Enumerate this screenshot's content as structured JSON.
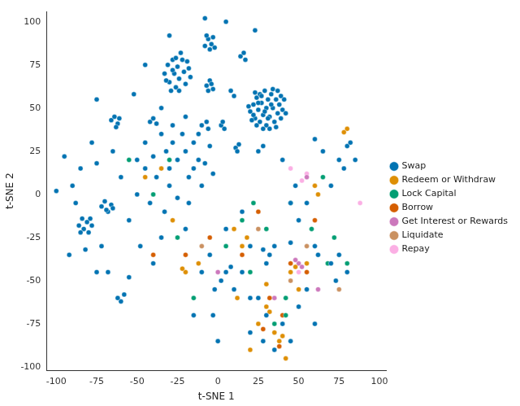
{
  "chart_data": {
    "type": "scatter",
    "x_label": "t-SNE 1",
    "y_label": "t-SNE 2",
    "xlim": [
      -106,
      104
    ],
    "ylim": [
      -102,
      106
    ],
    "xticks": [
      -100,
      -75,
      -50,
      -25,
      0,
      25,
      50,
      75,
      100
    ],
    "yticks": [
      -100,
      -75,
      -50,
      -25,
      0,
      25,
      50,
      75,
      100
    ],
    "grid": false,
    "legend": "right",
    "marker": "circle",
    "series": [
      {
        "name": "Swap",
        "color": "#0173b2",
        "values": [
          [
            20,
            48
          ],
          [
            22,
            52
          ],
          [
            23,
            44
          ],
          [
            24,
            56
          ],
          [
            25,
            49
          ],
          [
            26,
            42
          ],
          [
            26,
            58
          ],
          [
            27,
            53
          ],
          [
            28,
            46
          ],
          [
            29,
            60
          ],
          [
            30,
            50
          ],
          [
            30,
            40
          ],
          [
            31,
            55
          ],
          [
            32,
            45
          ],
          [
            33,
            58
          ],
          [
            34,
            50
          ],
          [
            35,
            42
          ],
          [
            36,
            55
          ],
          [
            37,
            47
          ],
          [
            38,
            52
          ],
          [
            39,
            44
          ],
          [
            40,
            49
          ],
          [
            28,
            38
          ],
          [
            34,
            61
          ],
          [
            22,
            46
          ],
          [
            24,
            40
          ],
          [
            36,
            39
          ],
          [
            41,
            55
          ],
          [
            19,
            51
          ],
          [
            27,
            57
          ],
          [
            31,
            44
          ],
          [
            33,
            52
          ],
          [
            29,
            48
          ],
          [
            25,
            53
          ],
          [
            37,
            60
          ],
          [
            23,
            59
          ],
          [
            39,
            57
          ],
          [
            42,
            47
          ],
          [
            21,
            43
          ],
          [
            32,
            38
          ],
          [
            -33,
            70
          ],
          [
            -31,
            75
          ],
          [
            -30,
            65
          ],
          [
            -28,
            78
          ],
          [
            -27,
            70
          ],
          [
            -26,
            62
          ],
          [
            -25,
            74
          ],
          [
            -24,
            67
          ],
          [
            -22,
            78
          ],
          [
            -21,
            71
          ],
          [
            -20,
            64
          ],
          [
            -18,
            73
          ],
          [
            -29,
            60
          ],
          [
            -17,
            68
          ],
          [
            -23,
            82
          ],
          [
            -32,
            66
          ],
          [
            -26,
            79
          ],
          [
            -19,
            77
          ],
          [
            -24,
            60
          ],
          [
            -28,
            72
          ],
          [
            -8,
            86
          ],
          [
            -6,
            90
          ],
          [
            -4,
            87
          ],
          [
            -3,
            91
          ],
          [
            -7,
            92
          ],
          [
            -2,
            85
          ],
          [
            -5,
            84
          ],
          [
            -86,
            -18
          ],
          [
            -84,
            -14
          ],
          [
            -83,
            -20
          ],
          [
            -81,
            -16
          ],
          [
            -80,
            -22
          ],
          [
            -79,
            -14
          ],
          [
            -85,
            -22
          ],
          [
            -78,
            -18
          ],
          [
            -72,
            -7
          ],
          [
            -70,
            -4
          ],
          [
            -68,
            -10
          ],
          [
            -66,
            -6
          ],
          [
            -69,
            -9
          ],
          [
            -65,
            -8
          ],
          [
            -66,
            43
          ],
          [
            -64,
            45
          ],
          [
            -62,
            41
          ],
          [
            -61,
            44
          ],
          [
            -63,
            39
          ],
          [
            -42,
            42
          ],
          [
            -40,
            44
          ],
          [
            -38,
            41
          ],
          [
            -7,
            63
          ],
          [
            -5,
            66
          ],
          [
            -3,
            61
          ],
          [
            -4,
            64
          ],
          [
            -6,
            60
          ],
          [
            14,
            80
          ],
          [
            16,
            82
          ],
          [
            17,
            78
          ],
          [
            -10,
            40
          ],
          [
            -7,
            42
          ],
          [
            -6,
            38
          ],
          [
            8,
            60
          ],
          [
            10,
            57
          ],
          [
            2,
            40
          ],
          [
            4,
            38
          ],
          [
            3,
            42
          ],
          [
            11,
            27
          ],
          [
            13,
            29
          ],
          [
            12,
            25
          ],
          [
            -45,
            30
          ],
          [
            -40,
            22
          ],
          [
            -35,
            35
          ],
          [
            -32,
            25
          ],
          [
            -30,
            15
          ],
          [
            -28,
            30
          ],
          [
            -25,
            20
          ],
          [
            -22,
            35
          ],
          [
            -20,
            25
          ],
          [
            -18,
            10
          ],
          [
            -15,
            30
          ],
          [
            -12,
            20
          ],
          [
            -10,
            5
          ],
          [
            -30,
            5
          ],
          [
            -38,
            10
          ],
          [
            -42,
            -5
          ],
          [
            -20,
            45
          ],
          [
            -15,
            15
          ],
          [
            -8,
            18
          ],
          [
            -5,
            28
          ],
          [
            -25,
            -2
          ],
          [
            -35,
            50
          ],
          [
            -45,
            15
          ],
          [
            -50,
            20
          ],
          [
            -28,
            40
          ],
          [
            -12,
            35
          ],
          [
            -3,
            12
          ],
          [
            -18,
            -5
          ],
          [
            -33,
            -10
          ],
          [
            -100,
            2
          ],
          [
            -95,
            22
          ],
          [
            -90,
            5
          ],
          [
            -88,
            -5
          ],
          [
            -92,
            -35
          ],
          [
            -78,
            30
          ],
          [
            -75,
            18
          ],
          [
            -72,
            -30
          ],
          [
            -68,
            -45
          ],
          [
            -60,
            -62
          ],
          [
            -58,
            -58
          ],
          [
            -62,
            -60
          ],
          [
            -55,
            -48
          ],
          [
            -75,
            -45
          ],
          [
            -52,
            58
          ],
          [
            -45,
            75
          ],
          [
            -75,
            55
          ],
          [
            -85,
            15
          ],
          [
            -60,
            10
          ],
          [
            -55,
            -15
          ],
          [
            -50,
            0
          ],
          [
            -48,
            -30
          ],
          [
            -40,
            -40
          ],
          [
            -35,
            -25
          ],
          [
            -65,
            25
          ],
          [
            -82,
            -32
          ],
          [
            -8,
            102
          ],
          [
            23,
            95
          ],
          [
            -30,
            92
          ],
          [
            5,
            100
          ],
          [
            25,
            25
          ],
          [
            28,
            28
          ],
          [
            45,
            -5
          ],
          [
            50,
            -15
          ],
          [
            35,
            -30
          ],
          [
            32,
            -35
          ],
          [
            28,
            -32
          ],
          [
            30,
            -40
          ],
          [
            10,
            -55
          ],
          [
            5,
            -45
          ],
          [
            2,
            -50
          ],
          [
            8,
            -42
          ],
          [
            -2,
            -55
          ],
          [
            15,
            -45
          ],
          [
            45,
            -28
          ],
          [
            60,
            -30
          ],
          [
            62,
            -35
          ],
          [
            70,
            5
          ],
          [
            65,
            25
          ],
          [
            75,
            20
          ],
          [
            60,
            32
          ],
          [
            80,
            28
          ],
          [
            82,
            30
          ],
          [
            85,
            20
          ],
          [
            78,
            15
          ],
          [
            40,
            -75
          ],
          [
            30,
            -70
          ],
          [
            35,
            -90
          ],
          [
            28,
            -85
          ],
          [
            50,
            -65
          ],
          [
            55,
            -55
          ],
          [
            70,
            -40
          ],
          [
            75,
            -35
          ],
          [
            80,
            -45
          ],
          [
            73,
            -50
          ],
          [
            60,
            -75
          ],
          [
            45,
            -85
          ],
          [
            20,
            -60
          ],
          [
            -5,
            -35
          ],
          [
            -10,
            -45
          ],
          [
            -20,
            -20
          ],
          [
            15,
            -10
          ],
          [
            5,
            -20
          ],
          [
            20,
            -30
          ],
          [
            55,
            -5
          ],
          [
            48,
            5
          ],
          [
            40,
            20
          ],
          [
            -15,
            -70
          ],
          [
            0,
            -85
          ],
          [
            -3,
            -70
          ],
          [
            20,
            -80
          ],
          [
            25,
            -60
          ]
        ]
      },
      {
        "name": "Redeem or Withdraw",
        "color": "#de8f05",
        "values": [
          [
            -35,
            15
          ],
          [
            -28,
            -15
          ],
          [
            10,
            -20
          ],
          [
            15,
            -30
          ],
          [
            18,
            -25
          ],
          [
            -12,
            -40
          ],
          [
            -20,
            -45
          ],
          [
            -22,
            -43
          ],
          [
            45,
            -45
          ],
          [
            48,
            -42
          ],
          [
            30,
            -65
          ],
          [
            32,
            -68
          ],
          [
            35,
            -80
          ],
          [
            38,
            -85
          ],
          [
            40,
            -82
          ],
          [
            55,
            -40
          ],
          [
            60,
            5
          ],
          [
            62,
            0
          ],
          [
            80,
            38
          ],
          [
            78,
            36
          ],
          [
            30,
            -52
          ],
          [
            25,
            -75
          ],
          [
            -45,
            10
          ],
          [
            12,
            -60
          ],
          [
            50,
            -55
          ],
          [
            20,
            -90
          ],
          [
            42,
            -95
          ]
        ]
      },
      {
        "name": "Lock Capital",
        "color": "#029e73",
        "values": [
          [
            -30,
            20
          ],
          [
            -40,
            0
          ],
          [
            -55,
            20
          ],
          [
            22,
            -5
          ],
          [
            15,
            -15
          ],
          [
            30,
            -20
          ],
          [
            -25,
            -25
          ],
          [
            5,
            -30
          ],
          [
            42,
            -60
          ],
          [
            45,
            -5
          ],
          [
            65,
            10
          ],
          [
            72,
            -25
          ],
          [
            80,
            -40
          ],
          [
            58,
            -20
          ],
          [
            35,
            -75
          ],
          [
            42,
            -70
          ],
          [
            -15,
            -60
          ],
          [
            68,
            -40
          ],
          [
            20,
            -45
          ]
        ]
      },
      {
        "name": "Borrow",
        "color": "#d55e00",
        "values": [
          [
            -20,
            -35
          ],
          [
            -5,
            -25
          ],
          [
            15,
            -35
          ],
          [
            25,
            -10
          ],
          [
            40,
            -70
          ],
          [
            38,
            -88
          ],
          [
            32,
            -60
          ],
          [
            55,
            -45
          ],
          [
            45,
            -40
          ],
          [
            -40,
            -35
          ],
          [
            60,
            -15
          ],
          [
            28,
            -78
          ]
        ]
      },
      {
        "name": "Get Interest or Rewards",
        "color": "#cc78bc",
        "values": [
          [
            50,
            -40
          ],
          [
            48,
            -38
          ],
          [
            52,
            -42
          ],
          [
            55,
            10
          ],
          [
            62,
            -55
          ],
          [
            0,
            -45
          ],
          [
            35,
            -60
          ]
        ]
      },
      {
        "name": "Liquidate",
        "color": "#ca9161",
        "values": [
          [
            45,
            -50
          ],
          [
            25,
            -20
          ],
          [
            -10,
            -30
          ],
          [
            75,
            -55
          ],
          [
            55,
            -30
          ]
        ]
      },
      {
        "name": "Repay",
        "color": "#fbafe4",
        "values": [
          [
            52,
            8
          ],
          [
            55,
            12
          ],
          [
            50,
            -45
          ],
          [
            88,
            -5
          ],
          [
            45,
            15
          ]
        ]
      }
    ]
  }
}
